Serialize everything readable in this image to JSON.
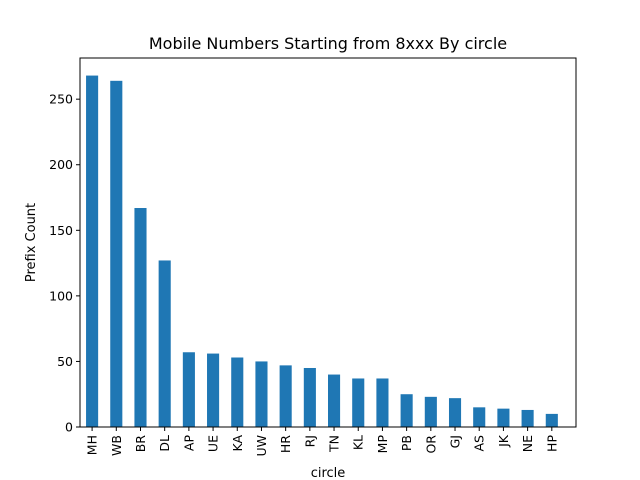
{
  "chart_data": {
    "type": "bar",
    "title": "Mobile Numbers Starting from 8xxx By circle",
    "xlabel": "circle",
    "ylabel": "Prefix Count",
    "categories": [
      "MH",
      "WB",
      "BR",
      "DL",
      "AP",
      "UE",
      "KA",
      "UW",
      "HR",
      "RJ",
      "TN",
      "KL",
      "MP",
      "PB",
      "OR",
      "GJ",
      "AS",
      "JK",
      "NE",
      "HP"
    ],
    "values": [
      268,
      264,
      167,
      127,
      57,
      56,
      53,
      50,
      47,
      45,
      40,
      37,
      37,
      25,
      23,
      22,
      15,
      14,
      13,
      10
    ],
    "ylim": [
      0,
      281.4
    ],
    "yticks": [
      0,
      50,
      100,
      150,
      200,
      250
    ],
    "ytick_labels": [
      "0",
      "50",
      "100",
      "150",
      "200",
      "250"
    ],
    "bar_color": "#1f77b4",
    "grid": false,
    "legend": "none"
  }
}
